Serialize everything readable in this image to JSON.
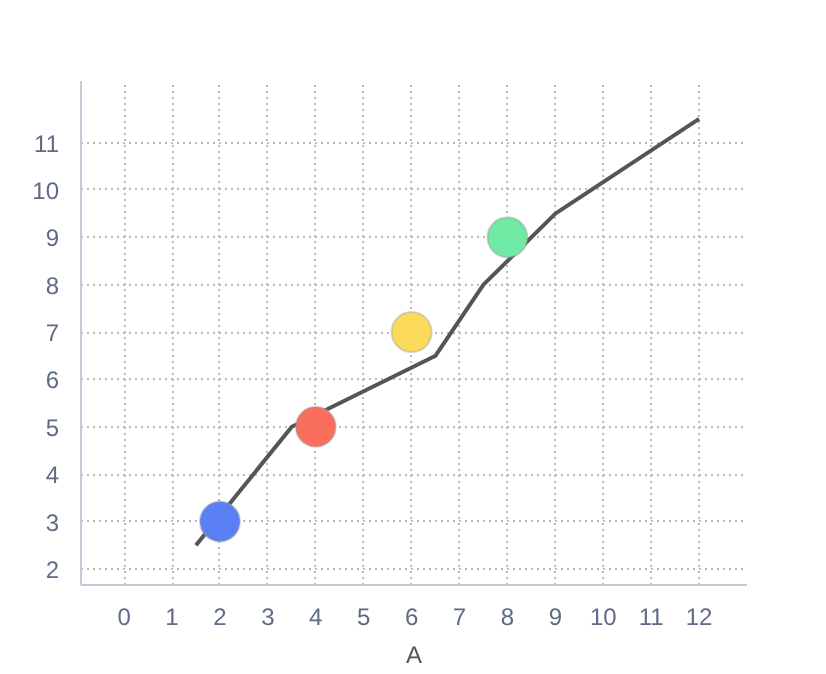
{
  "chart_data": {
    "type": "scatter",
    "xlabel": "A",
    "xlim": [
      -0.9,
      13
    ],
    "ylim": [
      1.66,
      12.3
    ],
    "xticks": [
      0,
      1,
      2,
      3,
      4,
      5,
      6,
      7,
      8,
      9,
      10,
      11,
      12
    ],
    "yticks": [
      2,
      3,
      4,
      5,
      6,
      7,
      8,
      9,
      10,
      11
    ],
    "grid": true,
    "series": [
      {
        "type": "line",
        "color": "#555559",
        "x": [
          1.5,
          3.5,
          6.5,
          7.5,
          9,
          12
        ],
        "values": [
          2.5,
          5,
          6.5,
          8,
          9.5,
          11.5
        ]
      },
      {
        "marker": "circle",
        "x": [
          2,
          4,
          6,
          8
        ],
        "values": [
          3,
          5,
          7,
          9
        ],
        "colors": [
          "#5b80f5",
          "#f96f5b",
          "#fddb5a",
          "#6fe9a4"
        ]
      }
    ]
  }
}
